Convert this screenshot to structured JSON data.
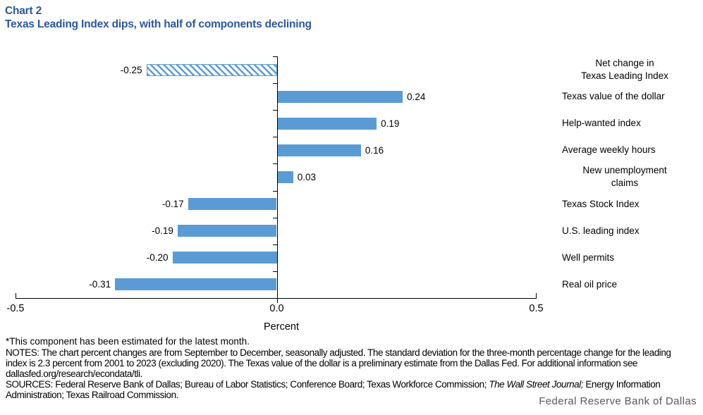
{
  "header": {
    "chart_label": "Chart 2",
    "title": "Texas Leading Index dips, with half of components declining"
  },
  "colors": {
    "title_blue": "#2B579A",
    "bar_blue": "#5B9BD5",
    "axis_black": "#000000",
    "branding_gray": "#595959"
  },
  "chart_data": {
    "type": "bar",
    "orientation": "horizontal",
    "title": "Texas Leading Index dips, with half of components declining",
    "xlabel": "Percent",
    "xlim": [
      -0.5,
      0.5
    ],
    "x_tick_values": [
      -0.5,
      0.0,
      0.5
    ],
    "x_tick_labels": [
      "-0.5",
      "0.0",
      "0.5"
    ],
    "grid": false,
    "legend": "none",
    "bar_color": "#5B9BD5",
    "categories": [
      "Net change in\nTexas Leading Index",
      "Texas value of the dollar",
      "Help-wanted index",
      "Average weekly hours",
      "New unemployment\nclaims",
      "Texas Stock Index",
      "U.S. leading index",
      "Well permits",
      "Real oil price"
    ],
    "values": [
      -0.25,
      0.24,
      0.19,
      0.16,
      0.03,
      -0.17,
      -0.19,
      -0.2,
      -0.31
    ],
    "value_labels": [
      "-0.25",
      "0.24",
      "0.19",
      "0.16",
      "0.03",
      "-0.17",
      "-0.19",
      "-0.20",
      "-0.31"
    ],
    "bar_styles": [
      "hatched",
      "solid",
      "solid",
      "solid",
      "solid",
      "solid",
      "solid",
      "solid",
      "solid"
    ]
  },
  "footnotes": {
    "asterisk_note": "*This component has been estimated for the latest month.",
    "notes": "NOTES: The chart percent changes are from September to December, seasonally adjusted. The standard deviation for the three-month percentage change for the leading index is 2.3 percent from 2001 to 2023 (excluding 2020). The Texas value of the dollar is a preliminary estimate from the Dallas Fed. For additional information see dallasfed.org/research/econdata/tli.",
    "sources_prefix": "SOURCES: Federal Reserve Bank of Dallas; Bureau of Labor Statistics; Conference Board; Texas Workforce Commission; ",
    "sources_italic": "The Wall Street Journal;",
    "sources_suffix": " Energy Information Administration; Texas Railroad Commission.",
    "branding": "Federal Reserve Bank of Dallas"
  }
}
